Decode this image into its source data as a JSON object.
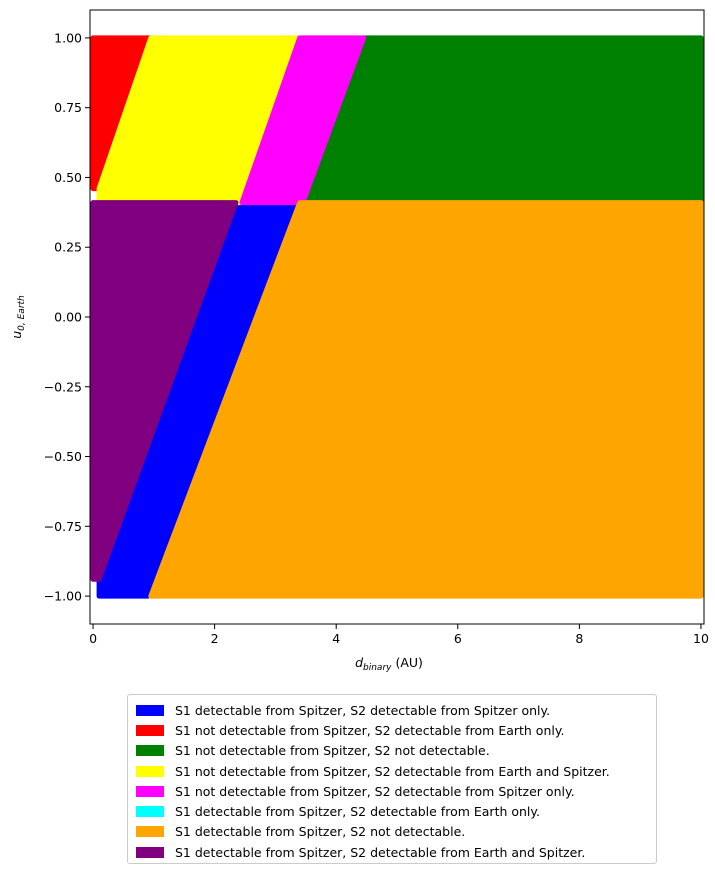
{
  "chart_data": {
    "type": "scatter",
    "title": "",
    "xlabel": "d",
    "xlabel_sub": "binary",
    "xlabel_unit": " (AU)",
    "ylabel": "u",
    "ylabel_sub": "0, Earth",
    "xlim": [
      -0.05,
      10.05
    ],
    "ylim": [
      -1.1,
      1.1
    ],
    "x_ticks": [
      0,
      2,
      4,
      6,
      8,
      10
    ],
    "x_tick_labels": [
      "0",
      "2",
      "4",
      "6",
      "8",
      "10"
    ],
    "y_ticks": [
      1.0,
      0.75,
      0.5,
      0.25,
      0.0,
      -0.25,
      -0.5,
      -0.75,
      -1.0
    ],
    "y_tick_labels": [
      "1.00",
      "0.75",
      "0.50",
      "0.25",
      "0.00",
      "−0.25",
      "−0.50",
      "−0.75",
      "−1.00"
    ],
    "grid": false,
    "legend_position": "below",
    "series": [
      {
        "name": "S1 detectable from Spitzer, S2 detectable from Spitzer only.",
        "color": "#0000ff",
        "region": [
          [
            0.9,
            -1.0
          ],
          [
            3.4,
            0.41
          ],
          [
            2.35,
            0.41
          ],
          [
            0.1,
            -0.94
          ],
          [
            0.1,
            -1.0
          ]
        ]
      },
      {
        "name": "S1 not detectable from Spitzer, S2 detectable from Earth only.",
        "color": "#ff0000",
        "region": [
          [
            0.0,
            0.46
          ],
          [
            0.1,
            0.46
          ],
          [
            0.95,
            1.0
          ],
          [
            0.0,
            1.0
          ]
        ]
      },
      {
        "name": "S1 not detectable from Spitzer, S2 not detectable.",
        "color": "#008000",
        "region": [
          [
            3.45,
            0.41
          ],
          [
            10.0,
            0.41
          ],
          [
            10.0,
            1.0
          ],
          [
            4.45,
            1.0
          ]
        ]
      },
      {
        "name": "S1 not detectable from Spitzer, S2 detectable from Earth and Spitzer.",
        "color": "#ffff00",
        "region": [
          [
            0.1,
            0.46
          ],
          [
            0.1,
            0.41
          ],
          [
            2.45,
            0.41
          ],
          [
            3.4,
            1.0
          ],
          [
            0.95,
            1.0
          ]
        ]
      },
      {
        "name": "S1 not detectable from Spitzer, S2 detectable from Spitzer only.",
        "color": "#ff00ff",
        "region": [
          [
            2.45,
            0.41
          ],
          [
            3.45,
            0.41
          ],
          [
            4.45,
            1.0
          ],
          [
            3.4,
            1.0
          ]
        ]
      },
      {
        "name": "S1 detectable from Spitzer, S2 detectable from Earth only.",
        "color": "#00ffff",
        "region": []
      },
      {
        "name": "S1 detectable from Spitzer, S2 not detectable.",
        "color": "#ffa500",
        "region": [
          [
            0.95,
            -1.0
          ],
          [
            10.0,
            -1.0
          ],
          [
            10.0,
            0.41
          ],
          [
            3.4,
            0.41
          ]
        ]
      },
      {
        "name": "S1 detectable from Spitzer, S2 detectable from Earth and Spitzer.",
        "color": "#800080",
        "region": [
          [
            0.0,
            0.41
          ],
          [
            2.35,
            0.41
          ],
          [
            0.1,
            -0.94
          ],
          [
            0.0,
            -0.94
          ]
        ]
      }
    ]
  }
}
